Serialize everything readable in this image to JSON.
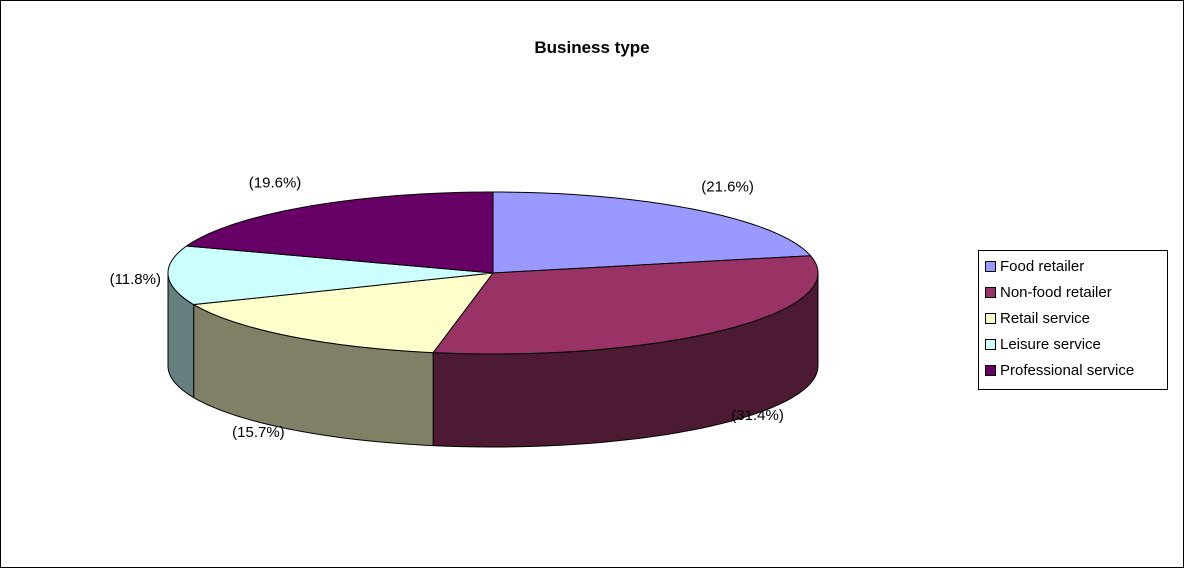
{
  "chart_data": {
    "type": "pie",
    "title": "Business type",
    "slices": [
      {
        "name": "Food retailer",
        "value": 21.6,
        "label": "(21.6%)",
        "color": "#9999ff",
        "side_color": "#4d4d80"
      },
      {
        "name": "Non-food retailer",
        "value": 31.4,
        "label": "(31.4%)",
        "color": "#993366",
        "side_color": "#4d1a33"
      },
      {
        "name": "Retail service",
        "value": 15.7,
        "label": "(15.7%)",
        "color": "#ffffcc",
        "side_color": "#808066"
      },
      {
        "name": "Leisure service",
        "value": 11.8,
        "label": "(11.8%)",
        "color": "#ccffff",
        "side_color": "#668080"
      },
      {
        "name": "Professional service",
        "value": 19.6,
        "label": "(19.6%)",
        "color": "#660066",
        "side_color": "#330033"
      }
    ],
    "legend_position": "right",
    "style": "3d"
  }
}
